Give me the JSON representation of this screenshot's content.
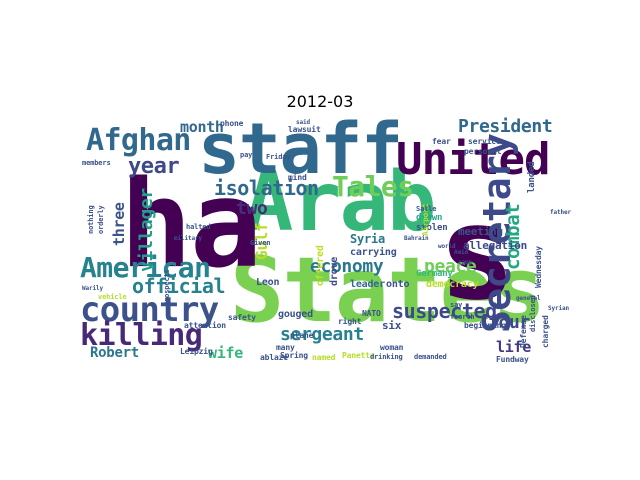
{
  "title": "2012-03",
  "palette": "viridis",
  "words": [
    {
      "text": "Arab",
      "color": "#35b779"
    },
    {
      "text": "States",
      "color": "#7ad151"
    },
    {
      "text": "ha",
      "color": "#440154"
    },
    {
      "text": "staff",
      "color": "#31688e"
    },
    {
      "text": "s",
      "color": "#440154"
    },
    {
      "text": "United",
      "color": "#440154"
    },
    {
      "text": "Secretary",
      "color": "#3e4989"
    },
    {
      "text": "country",
      "color": "#3b528b"
    },
    {
      "text": "American",
      "color": "#26828e"
    },
    {
      "text": "Afghan",
      "color": "#31688e"
    },
    {
      "text": "killing",
      "color": "#482878"
    },
    {
      "text": "Tales",
      "color": "#6ece58"
    },
    {
      "text": "President",
      "color": "#31688e"
    },
    {
      "text": "year",
      "color": "#3e4989"
    },
    {
      "text": "isolation",
      "color": "#31688e"
    },
    {
      "text": "official",
      "color": "#26828e"
    },
    {
      "text": "villager",
      "color": "#1f9e89"
    },
    {
      "text": "economy",
      "color": "#2a788e"
    },
    {
      "text": "suspected",
      "color": "#3e4989"
    },
    {
      "text": "combat",
      "color": "#22a884"
    },
    {
      "text": "peace",
      "color": "#6ece58"
    },
    {
      "text": "four",
      "color": "#3e4989"
    },
    {
      "text": "sergeant",
      "color": "#26828e"
    },
    {
      "text": "Gulf",
      "color": "#b5de2b"
    },
    {
      "text": "month",
      "color": "#31688e"
    },
    {
      "text": "two",
      "color": "#472d7b"
    },
    {
      "text": "three",
      "color": "#3b528b"
    },
    {
      "text": "wife",
      "color": "#35b779"
    },
    {
      "text": "Robert",
      "color": "#2a788e"
    },
    {
      "text": "life",
      "color": "#443983"
    },
    {
      "text": "Syria",
      "color": "#2a788e"
    },
    {
      "text": "meeting",
      "color": "#3b528b"
    },
    {
      "text": "allegation",
      "color": "#3e4989"
    },
    {
      "text": "carrying",
      "color": "#3b528b"
    },
    {
      "text": "leader",
      "color": "#31688e"
    },
    {
      "text": "onto",
      "color": "#3b528b"
    },
    {
      "text": "democracy",
      "color": "#b5de2b"
    },
    {
      "text": "offered",
      "color": "#bddf26"
    },
    {
      "text": "drove",
      "color": "#3e4989"
    },
    {
      "text": "gouged",
      "color": "#3b528b"
    },
    {
      "text": "six",
      "color": "#3b528b"
    },
    {
      "text": "drawn",
      "color": "#22a884"
    },
    {
      "text": "stolen",
      "color": "#3b528b"
    },
    {
      "text": "landed",
      "color": "#3b528b"
    },
    {
      "text": "Germany",
      "color": "#35b779"
    },
    {
      "text": "Leon",
      "color": "#3b528b"
    },
    {
      "text": "many",
      "color": "#3b528b"
    },
    {
      "text": "plane",
      "color": "#3b528b"
    },
    {
      "text": "right",
      "color": "#3b528b"
    },
    {
      "text": "Spring",
      "color": "#3b528b"
    },
    {
      "text": "NATO",
      "color": "#3b528b"
    },
    {
      "text": "woman",
      "color": "#3b528b"
    },
    {
      "text": "Panetta",
      "color": "#b5de2b"
    },
    {
      "text": "ablaze",
      "color": "#3b528b"
    },
    {
      "text": "named",
      "color": "#b5de2b"
    },
    {
      "text": "safety",
      "color": "#3b528b"
    },
    {
      "text": "attention",
      "color": "#3b528b"
    },
    {
      "text": "phone",
      "color": "#3b528b"
    },
    {
      "text": "lawsuit",
      "color": "#3b528b"
    },
    {
      "text": "mind",
      "color": "#3b528b"
    },
    {
      "text": "Wednesday",
      "color": "#3b528b"
    },
    {
      "text": "charged",
      "color": "#3b528b"
    },
    {
      "text": "Defense",
      "color": "#3b528b"
    },
    {
      "text": "Fundway",
      "color": "#3b528b"
    },
    {
      "text": "beginning",
      "color": "#3b528b"
    },
    {
      "text": "service",
      "color": "#3b528b"
    },
    {
      "text": "personal",
      "color": "#3b528b"
    },
    {
      "text": "fear",
      "color": "#3b528b"
    },
    {
      "text": "disclosed",
      "color": "#3b528b"
    },
    {
      "text": "Airport",
      "color": "#b5de2b"
    },
    {
      "text": "Leipzig",
      "color": "#3b528b"
    },
    {
      "text": "drinking",
      "color": "#3b528b"
    },
    {
      "text": "demanded",
      "color": "#3b528b"
    },
    {
      "text": "vehicle",
      "color": "#b5de2b"
    },
    {
      "text": "nothing",
      "color": "#3b528b"
    },
    {
      "text": "orderly",
      "color": "#3b528b"
    },
    {
      "text": "members",
      "color": "#3b528b"
    },
    {
      "text": "Friday",
      "color": "#3b528b"
    },
    {
      "text": "halted",
      "color": "#3b528b"
    },
    {
      "text": "Given",
      "color": "#3b528b"
    },
    {
      "text": "pay",
      "color": "#3b528b"
    },
    {
      "text": "said",
      "color": "#3b528b"
    },
    {
      "text": "fourth",
      "color": "#3b528b"
    },
    {
      "text": "say",
      "color": "#3b528b"
    },
    {
      "text": "world",
      "color": "#3b528b"
    },
    {
      "text": "Bahrain",
      "color": "#3b528b"
    },
    {
      "text": "Salle",
      "color": "#3b528b"
    },
    {
      "text": "Amid",
      "color": "#3b528b"
    },
    {
      "text": "camp",
      "color": "#3b528b"
    },
    {
      "text": "father",
      "color": "#3b528b"
    },
    {
      "text": "Syrian",
      "color": "#3b528b"
    },
    {
      "text": "general",
      "color": "#3b528b"
    },
    {
      "text": "Prospects",
      "color": "#3b528b"
    },
    {
      "text": "military",
      "color": "#3b528b"
    },
    {
      "text": "Warily",
      "color": "#3b528b"
    }
  ]
}
